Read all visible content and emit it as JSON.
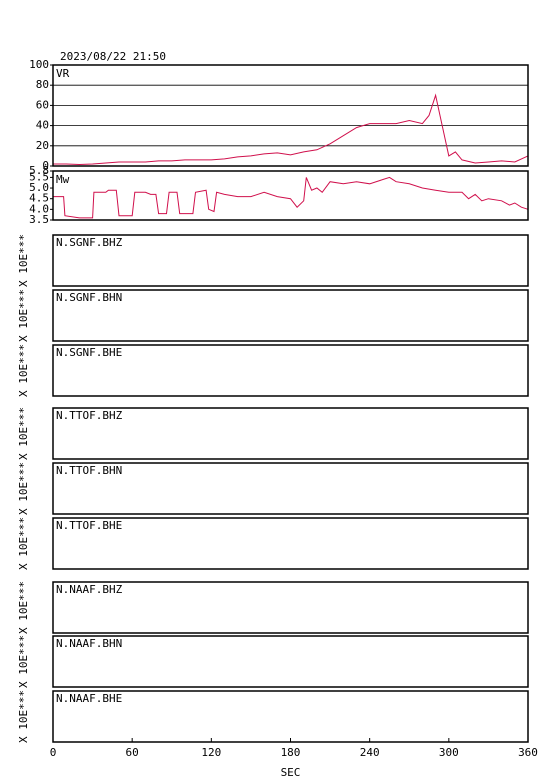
{
  "chart_data": [
    {
      "type": "line",
      "title": "2023/08/22 21:50",
      "label": "VR",
      "x": [
        0,
        10,
        20,
        30,
        40,
        50,
        60,
        70,
        80,
        90,
        100,
        110,
        120,
        130,
        140,
        150,
        160,
        170,
        180,
        190,
        200,
        210,
        220,
        230,
        240,
        250,
        260,
        270,
        280,
        285,
        290,
        295,
        300,
        305,
        310,
        320,
        330,
        340,
        350,
        360
      ],
      "series": [
        {
          "color": "#d0104c",
          "values": [
            2,
            2,
            1.5,
            2,
            3,
            4,
            4,
            4,
            5,
            5,
            6,
            6,
            6,
            7,
            9,
            10,
            12,
            13,
            11,
            14,
            16,
            22,
            30,
            38,
            42,
            42,
            42,
            45,
            42,
            50,
            70,
            40,
            10,
            14,
            6,
            3,
            4,
            5,
            4,
            10
          ]
        }
      ],
      "xlim": [
        0,
        360
      ],
      "ylim": [
        0,
        100
      ],
      "yticks": [
        0,
        20,
        40,
        60,
        80,
        100
      ],
      "grid": true
    },
    {
      "type": "line",
      "label": "Mw",
      "x": [
        0,
        8,
        9,
        20,
        30,
        31,
        40,
        42,
        48,
        50,
        60,
        62,
        70,
        74,
        78,
        80,
        86,
        88,
        94,
        96,
        106,
        108,
        116,
        118,
        122,
        124,
        130,
        140,
        150,
        160,
        170,
        180,
        185,
        190,
        192,
        196,
        200,
        204,
        210,
        220,
        230,
        240,
        250,
        255,
        260,
        270,
        280,
        290,
        300,
        310,
        315,
        320,
        325,
        330,
        340,
        346,
        350,
        355,
        360
      ],
      "series": [
        {
          "color": "#d0104c",
          "values": [
            4.6,
            4.6,
            3.7,
            3.6,
            3.6,
            4.8,
            4.8,
            4.9,
            4.9,
            3.7,
            3.7,
            4.8,
            4.8,
            4.7,
            4.7,
            3.8,
            3.8,
            4.8,
            4.8,
            3.8,
            3.8,
            4.8,
            4.9,
            4.0,
            3.9,
            4.8,
            4.7,
            4.6,
            4.6,
            4.8,
            4.6,
            4.5,
            4.1,
            4.4,
            5.5,
            4.9,
            5.0,
            4.8,
            5.3,
            5.2,
            5.3,
            5.2,
            5.4,
            5.5,
            5.3,
            5.2,
            5.0,
            4.9,
            4.8,
            4.8,
            4.5,
            4.7,
            4.4,
            4.5,
            4.4,
            4.2,
            4.3,
            4.1,
            4.0
          ]
        }
      ],
      "xlim": [
        0,
        360
      ],
      "ylim": [
        3.5,
        5.8
      ],
      "yticks": [
        3.5,
        {
          "value": 4,
          "label": "4.0"
        },
        4.5,
        {
          "value": 5,
          "label": "5.0"
        },
        5.5,
        5.8
      ],
      "grid": false
    },
    {
      "type": "waveforms",
      "stations": [
        "N.SGNF.BHZ",
        "N.SGNF.BHN",
        "N.SGNF.BHE",
        "N.TTOF.BHZ",
        "N.TTOF.BHN",
        "N.TTOF.BHE",
        "N.NAAF.BHZ",
        "N.NAAF.BHN",
        "N.NAAF.BHE"
      ],
      "ylabel": "X 10E***",
      "xlabel": "SEC",
      "xlim": [
        0,
        360
      ],
      "xticks": [
        0,
        60,
        120,
        180,
        240,
        300,
        360
      ]
    }
  ]
}
